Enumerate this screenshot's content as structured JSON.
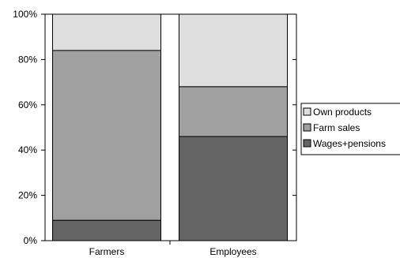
{
  "chart_data": {
    "type": "bar",
    "stacked": true,
    "percent": true,
    "categories": [
      "Farmers",
      "Employees"
    ],
    "series": [
      {
        "name": "Wages+pensions",
        "values": [
          9,
          46
        ],
        "color": "#646464"
      },
      {
        "name": "Farm sales",
        "values": [
          75,
          22
        ],
        "color": "#a0a0a0"
      },
      {
        "name": "Own products",
        "values": [
          16,
          32
        ],
        "color": "#dedede"
      }
    ],
    "legend_order": [
      "Own products",
      "Farm sales",
      "Wages+pensions"
    ],
    "yticks": [
      "0%",
      "20%",
      "40%",
      "60%",
      "80%",
      "100%"
    ],
    "ylim": [
      0,
      100
    ],
    "grid": false,
    "legend_position": "right",
    "title": "",
    "xlabel": "",
    "ylabel": ""
  }
}
